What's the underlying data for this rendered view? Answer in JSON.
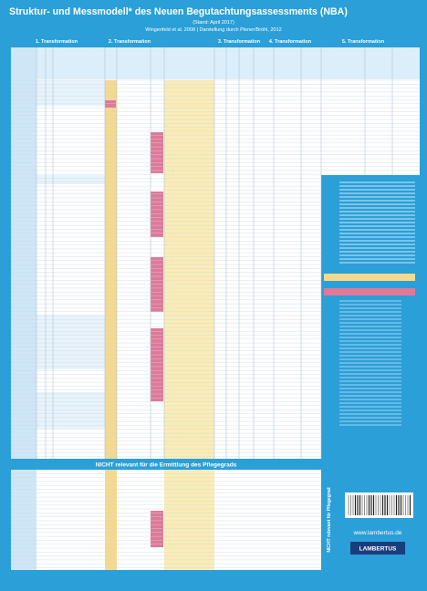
{
  "header": {
    "title": "Struktur- und Messmodell* des Neuen Begutachtungsassessments (NBA)",
    "date": "(Stand: April 2017)",
    "source": "Wingenfeld et al. 2008 | Darstellung durch Plener/Bröhl, 2012"
  },
  "sections": [
    "1. Transformation",
    "2. Transformation",
    "3. Transformation",
    "4. Transformation",
    "5. Transformation"
  ],
  "divider": "NICHT relevant für die Ermittlung des Pflegegrads",
  "side_label": "NICHT relevant für Pflegegrad",
  "footer": {
    "url": "www.lambertus.de",
    "publisher": "LAMBERTUS"
  }
}
